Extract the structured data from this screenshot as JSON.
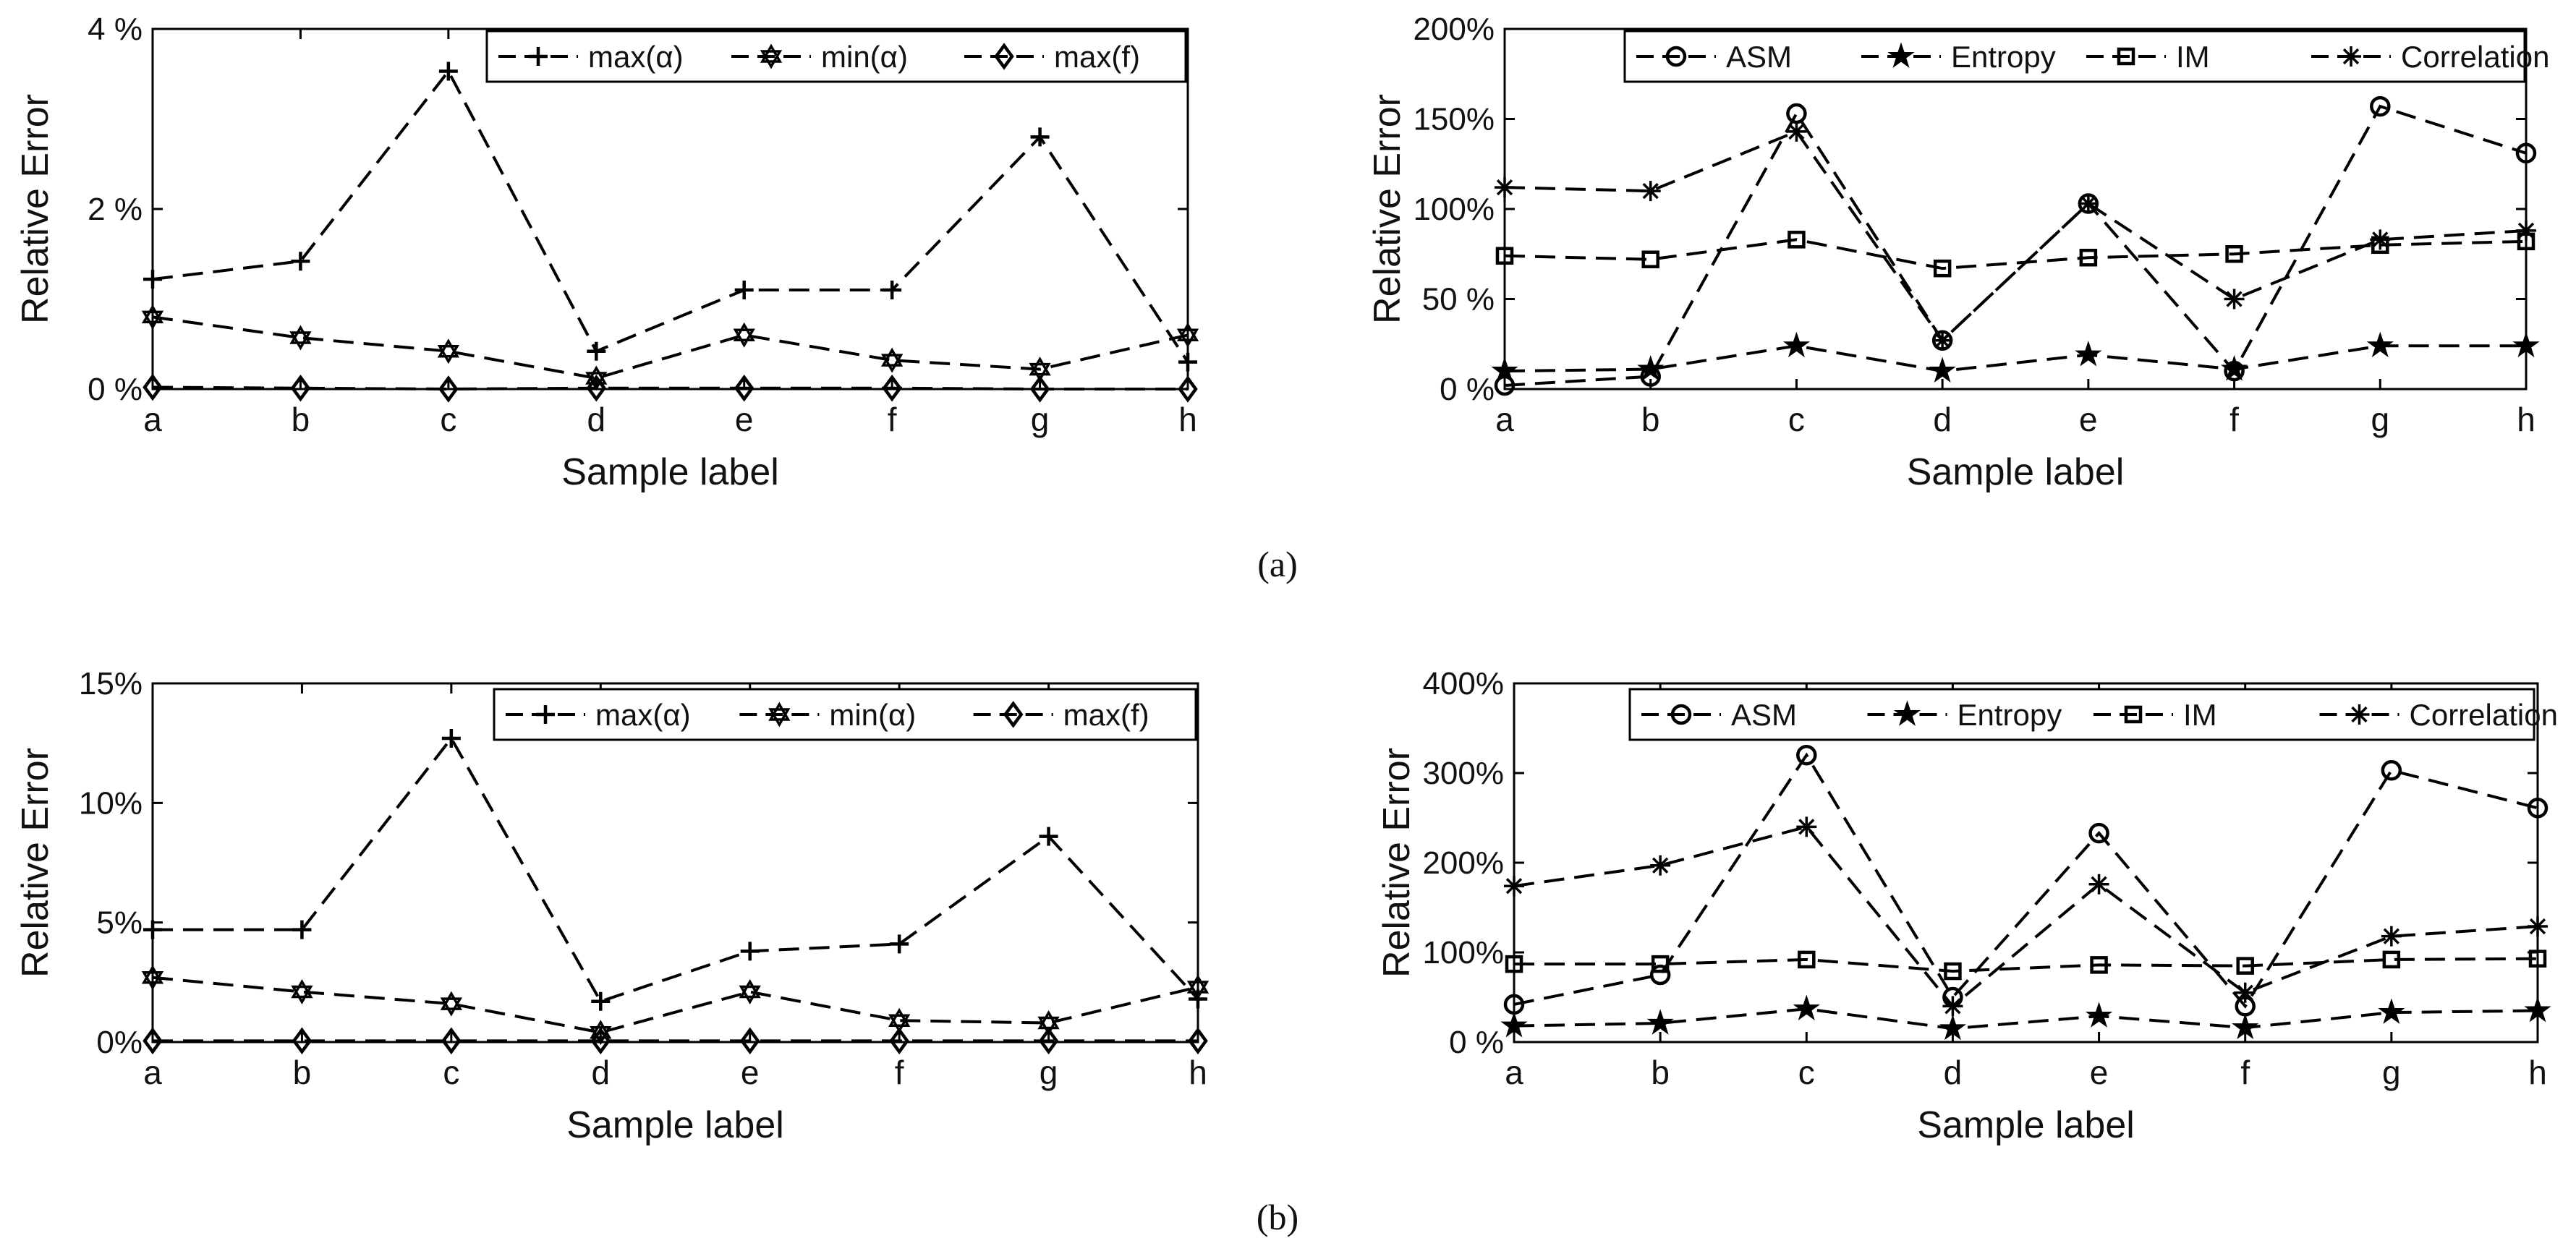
{
  "figure": {
    "captions": [
      "(a)",
      "(b)"
    ]
  },
  "chart_data": [
    {
      "type": "line",
      "panel": "a-left",
      "title": "",
      "xlabel": "Sample label",
      "ylabel": "Relative Error",
      "categories": [
        "a",
        "b",
        "c",
        "d",
        "e",
        "f",
        "g",
        "h"
      ],
      "ylim": [
        0,
        4
      ],
      "yticks": [
        0,
        2,
        4
      ],
      "yticklabels": [
        "0 %",
        "2 %",
        "4 %"
      ],
      "grid": false,
      "legend_position": "top-right",
      "series": [
        {
          "name": "max(α)",
          "marker": "plus",
          "values": [
            1.22,
            1.42,
            3.53,
            0.42,
            1.1,
            1.1,
            2.8,
            0.3
          ]
        },
        {
          "name": "min(α)",
          "marker": "hexagram",
          "values": [
            0.8,
            0.57,
            0.42,
            0.12,
            0.6,
            0.32,
            0.22,
            0.6
          ]
        },
        {
          "name": "max(f)",
          "marker": "diamond",
          "values": [
            0.02,
            0.01,
            0.0,
            0.01,
            0.01,
            0.01,
            0.0,
            0.0
          ]
        }
      ]
    },
    {
      "type": "line",
      "panel": "a-right",
      "title": "",
      "xlabel": "Sample label",
      "ylabel": "Relative Error",
      "categories": [
        "a",
        "b",
        "c",
        "d",
        "e",
        "f",
        "g",
        "h"
      ],
      "ylim": [
        0,
        200
      ],
      "yticks": [
        0,
        50,
        100,
        150,
        200
      ],
      "yticklabels": [
        "0 %",
        "50 %",
        "100%",
        "150%",
        "200%"
      ],
      "grid": false,
      "legend_position": "top-right",
      "series": [
        {
          "name": "ASM",
          "marker": "circle",
          "values": [
            2,
            7,
            153,
            27,
            103,
            10,
            157,
            131
          ]
        },
        {
          "name": "Entropy",
          "marker": "star",
          "values": [
            10,
            11,
            24,
            10,
            19,
            11,
            24,
            24
          ]
        },
        {
          "name": "IM",
          "marker": "square",
          "values": [
            74,
            72,
            83,
            67,
            73,
            75,
            80,
            82
          ]
        },
        {
          "name": "Correlation",
          "marker": "asterisk",
          "values": [
            112,
            110,
            143,
            27,
            103,
            50,
            83,
            88
          ]
        }
      ]
    },
    {
      "type": "line",
      "panel": "b-left",
      "title": "",
      "xlabel": "Sample label",
      "ylabel": "Relative Error",
      "categories": [
        "a",
        "b",
        "c",
        "d",
        "e",
        "f",
        "g",
        "h"
      ],
      "ylim": [
        0,
        15
      ],
      "yticks": [
        0,
        5,
        10,
        15
      ],
      "yticklabels": [
        "0%",
        "5%",
        "10%",
        "15%"
      ],
      "grid": false,
      "legend_position": "top-right",
      "series": [
        {
          "name": "max(α)",
          "marker": "plus",
          "values": [
            4.7,
            4.7,
            12.7,
            1.7,
            3.8,
            4.1,
            8.6,
            1.8
          ]
        },
        {
          "name": "min(α)",
          "marker": "hexagram",
          "values": [
            2.7,
            2.1,
            1.6,
            0.4,
            2.1,
            0.9,
            0.8,
            2.3
          ]
        },
        {
          "name": "max(f)",
          "marker": "diamond",
          "values": [
            0.05,
            0.05,
            0.05,
            0.05,
            0.05,
            0.05,
            0.05,
            0.05
          ]
        }
      ]
    },
    {
      "type": "line",
      "panel": "b-right",
      "title": "",
      "xlabel": "Sample label",
      "ylabel": "Relative Error",
      "categories": [
        "a",
        "b",
        "c",
        "d",
        "e",
        "f",
        "g",
        "h"
      ],
      "ylim": [
        0,
        400
      ],
      "yticks": [
        0,
        100,
        200,
        300,
        400
      ],
      "yticklabels": [
        "0 %",
        "100%",
        "200%",
        "300%",
        "400%"
      ],
      "grid": false,
      "legend_position": "top-right",
      "series": [
        {
          "name": "ASM",
          "marker": "circle",
          "values": [
            42,
            75,
            320,
            50,
            233,
            40,
            303,
            261
          ]
        },
        {
          "name": "Entropy",
          "marker": "star",
          "values": [
            18,
            21,
            37,
            15,
            29,
            16,
            33,
            35
          ]
        },
        {
          "name": "IM",
          "marker": "square",
          "values": [
            87,
            87,
            92,
            79,
            86,
            85,
            92,
            93
          ]
        },
        {
          "name": "Correlation",
          "marker": "asterisk",
          "values": [
            174,
            197,
            240,
            40,
            176,
            55,
            118,
            129
          ]
        }
      ]
    }
  ]
}
